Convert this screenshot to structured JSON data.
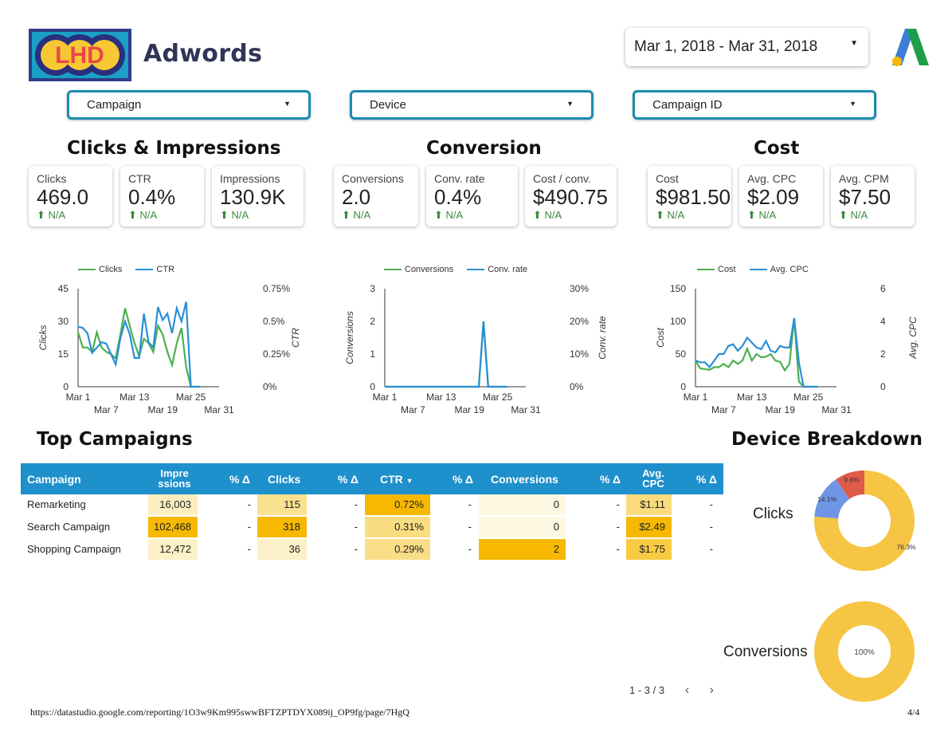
{
  "header": {
    "title": "Adwords",
    "logo_text": "LHD",
    "date_range": "Mar 1, 2018 - Mar 31, 2018"
  },
  "filters": [
    "Campaign",
    "Device",
    "Campaign ID"
  ],
  "sections": {
    "clicks": "Clicks & Impressions",
    "conversion": "Conversion",
    "cost": "Cost"
  },
  "scorecards": [
    {
      "label": "Clicks",
      "value": "469.0",
      "change": "N/A"
    },
    {
      "label": "CTR",
      "value": "0.4%",
      "change": "N/A"
    },
    {
      "label": "Impressions",
      "value": "130.9K",
      "change": "N/A"
    },
    {
      "label": "Conversions",
      "value": "2.0",
      "change": "N/A"
    },
    {
      "label": "Conv. rate",
      "value": "0.4%",
      "change": "N/A"
    },
    {
      "label": "Cost / conv.",
      "value": "$490.75",
      "change": "N/A"
    },
    {
      "label": "Cost",
      "value": "$981.50",
      "change": "N/A"
    },
    {
      "label": "Avg. CPC",
      "value": "$2.09",
      "change": "N/A"
    },
    {
      "label": "Avg. CPM",
      "value": "$7.50",
      "change": "N/A"
    }
  ],
  "colors": {
    "green": "#4caf50",
    "blue": "#2a8fd6",
    "header_blue": "#1e90cc",
    "yellow": "#f6c544",
    "donut_blue": "#6f95e6",
    "donut_red": "#e05a4a"
  },
  "chart_data": [
    {
      "type": "line",
      "x_ticks_top": [
        "Mar 1",
        "Mar 13",
        "Mar 25"
      ],
      "x_ticks_bottom": [
        "Mar 7",
        "Mar 19",
        "Mar 31"
      ],
      "left_axis": {
        "label": "Clicks",
        "ticks": [
          "45",
          "30",
          "15",
          "0"
        ],
        "range": [
          0,
          45
        ]
      },
      "right_axis": {
        "label": "CTR",
        "ticks": [
          "0.75%",
          "0.5%",
          "0.25%",
          "0%"
        ],
        "range": [
          0,
          0.75
        ]
      },
      "series": [
        {
          "name": "Clicks",
          "axis": "left",
          "color": "#4caf50",
          "values": [
            25,
            18,
            18,
            16,
            25,
            18,
            16,
            15,
            13,
            24,
            36,
            28,
            20,
            14,
            22,
            20,
            16,
            28,
            24,
            16,
            10,
            20,
            27,
            9,
            0,
            0,
            0
          ]
        },
        {
          "name": "CTR",
          "axis": "right",
          "color": "#2a8fd6",
          "values": [
            0.46,
            0.45,
            0.41,
            0.26,
            0.3,
            0.34,
            0.33,
            0.25,
            0.17,
            0.37,
            0.5,
            0.4,
            0.22,
            0.22,
            0.56,
            0.34,
            0.3,
            0.61,
            0.51,
            0.56,
            0.41,
            0.6,
            0.5,
            0.65,
            0,
            0,
            0
          ]
        }
      ]
    },
    {
      "type": "line",
      "x_ticks_top": [
        "Mar 1",
        "Mar 13",
        "Mar 25"
      ],
      "x_ticks_bottom": [
        "Mar 7",
        "Mar 19",
        "Mar 31"
      ],
      "left_axis": {
        "label": "Conversions",
        "ticks": [
          "3",
          "2",
          "1",
          "0"
        ],
        "range": [
          0,
          3
        ]
      },
      "right_axis": {
        "label": "Conv. rate",
        "ticks": [
          "30%",
          "20%",
          "10%",
          "0%"
        ],
        "range": [
          0,
          30
        ]
      },
      "series": [
        {
          "name": "Conversions",
          "axis": "left",
          "color": "#4caf50",
          "values": [
            0,
            0,
            0,
            0,
            0,
            0,
            0,
            0,
            0,
            0,
            0,
            0,
            0,
            0,
            0,
            0,
            0,
            0,
            0,
            0,
            0,
            2,
            0,
            0,
            0,
            0,
            0
          ]
        },
        {
          "name": "Conv. rate",
          "axis": "right",
          "color": "#2a8fd6",
          "values": [
            0,
            0,
            0,
            0,
            0,
            0,
            0,
            0,
            0,
            0,
            0,
            0,
            0,
            0,
            0,
            0,
            0,
            0,
            0,
            0,
            0,
            20,
            0,
            0,
            0,
            0,
            0
          ]
        }
      ]
    },
    {
      "type": "line",
      "x_ticks_top": [
        "Mar 1",
        "Mar 13",
        "Mar 25"
      ],
      "x_ticks_bottom": [
        "Mar 7",
        "Mar 19",
        "Mar 31"
      ],
      "left_axis": {
        "label": "Cost",
        "ticks": [
          "150",
          "100",
          "50",
          "0"
        ],
        "range": [
          0,
          150
        ]
      },
      "right_axis": {
        "label": "Avg. CPC",
        "ticks": [
          "6",
          "4",
          "2",
          "0"
        ],
        "range": [
          0,
          6
        ]
      },
      "series": [
        {
          "name": "Cost",
          "axis": "left",
          "color": "#4caf50",
          "values": [
            40,
            28,
            27,
            26,
            30,
            30,
            35,
            30,
            40,
            35,
            40,
            58,
            40,
            50,
            45,
            46,
            50,
            40,
            38,
            25,
            35,
            105,
            8,
            0,
            0,
            0,
            0
          ]
        },
        {
          "name": "Avg. CPC",
          "axis": "right",
          "color": "#2a8fd6",
          "values": [
            1.6,
            1.5,
            1.5,
            1.2,
            1.6,
            2.0,
            2.0,
            2.5,
            2.6,
            2.2,
            2.5,
            3.0,
            2.7,
            2.4,
            2.3,
            2.8,
            2.2,
            2.1,
            2.5,
            2.4,
            2.4,
            4.2,
            1.5,
            0,
            0,
            0,
            0
          ]
        }
      ]
    },
    {
      "type": "pie",
      "title": "Clicks",
      "slices": [
        {
          "name": "",
          "value": 76.3,
          "label": "76.3%",
          "color": "#f6c544"
        },
        {
          "name": "",
          "value": 14.1,
          "label": "14.1%",
          "color": "#6f95e6"
        },
        {
          "name": "",
          "value": 9.6,
          "label": "9.6%",
          "color": "#e05a4a"
        }
      ]
    },
    {
      "type": "pie",
      "title": "Conversions",
      "slices": [
        {
          "name": "",
          "value": 100,
          "label": "100%",
          "color": "#f6c544"
        }
      ]
    }
  ],
  "top_campaigns": {
    "title": "Top Campaigns",
    "columns": [
      "Campaign",
      "Impre ssions",
      "% Δ",
      "Clicks",
      "% Δ",
      "CTR",
      "% Δ",
      "Conversions",
      "% Δ",
      "Avg. CPC",
      "% Δ"
    ],
    "sort_indicator": "▼",
    "rows": [
      {
        "campaign": "Remarketing",
        "impressions": "16,003",
        "imp_delta": "-",
        "clicks": "115",
        "clicks_delta": "-",
        "ctr": "0.72%",
        "ctr_delta": "-",
        "conversions": "0",
        "conv_delta": "-",
        "cpc": "$1.11",
        "cpc_delta": "-"
      },
      {
        "campaign": "Search Campaign",
        "impressions": "102,468",
        "imp_delta": "-",
        "clicks": "318",
        "clicks_delta": "-",
        "ctr": "0.31%",
        "ctr_delta": "-",
        "conversions": "0",
        "conv_delta": "-",
        "cpc": "$2.49",
        "cpc_delta": "-"
      },
      {
        "campaign": "Shopping Campaign",
        "impressions": "12,472",
        "imp_delta": "-",
        "clicks": "36",
        "clicks_delta": "-",
        "ctr": "0.29%",
        "ctr_delta": "-",
        "conversions": "2",
        "conv_delta": "-",
        "cpc": "$1.75",
        "cpc_delta": "-"
      }
    ],
    "pager": "1 - 3 / 3",
    "prev_icon": "chevron-left-icon",
    "next_icon": "chevron-right-icon"
  },
  "device_breakdown": {
    "title": "Device Breakdown",
    "clicks_label": "Clicks",
    "conversions_label": "Conversions"
  },
  "footer": {
    "url": "https://datastudio.google.com/reporting/1O3w9Km995swwBFTZPTDYX089ij_OP9fg/page/7HgQ",
    "page": "4/4"
  }
}
